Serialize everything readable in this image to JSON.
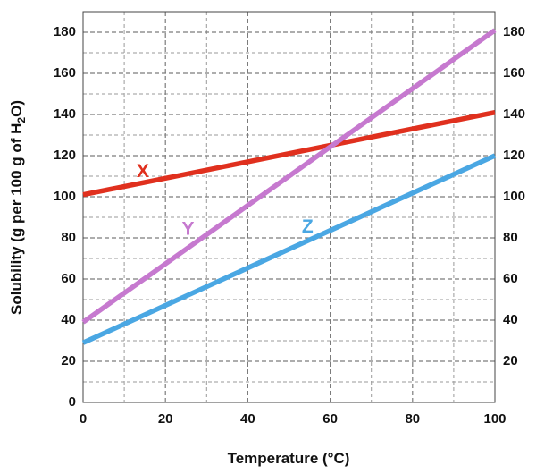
{
  "chart_data": {
    "type": "line",
    "xlabel": "Temperature (°C)",
    "ylabel": {
      "prefix": "Solubility (g per 100 g of H",
      "subscript": "2",
      "suffix": "O)"
    },
    "xlim": [
      0,
      100
    ],
    "ylim": [
      0,
      190
    ],
    "x_ticks": [
      0,
      20,
      40,
      60,
      80,
      100
    ],
    "y_ticks_left": [
      0,
      20,
      40,
      60,
      80,
      100,
      120,
      140,
      160,
      180
    ],
    "y_ticks_right": [
      20,
      40,
      60,
      80,
      100,
      120,
      140,
      160,
      180
    ],
    "grid": true,
    "grid_style": "dashed",
    "x_minor_step": 10,
    "y_minor_step": 10,
    "series": [
      {
        "name": "X",
        "color": "#e0301e",
        "x": [
          0,
          100
        ],
        "y": [
          101,
          141
        ]
      },
      {
        "name": "Y",
        "color": "#c679cf",
        "x": [
          0,
          100
        ],
        "y": [
          39,
          181
        ]
      },
      {
        "name": "Z",
        "color": "#4aa7e3",
        "x": [
          0,
          100
        ],
        "y": [
          29,
          120
        ]
      }
    ],
    "series_labels": [
      {
        "text": "X",
        "color": "#e0301e",
        "x": 14.5,
        "y": 112
      },
      {
        "text": "Y",
        "color": "#c679cf",
        "x": 25.5,
        "y": 84
      },
      {
        "text": "Z",
        "color": "#4aa7e3",
        "x": 54.5,
        "y": 85
      }
    ]
  }
}
